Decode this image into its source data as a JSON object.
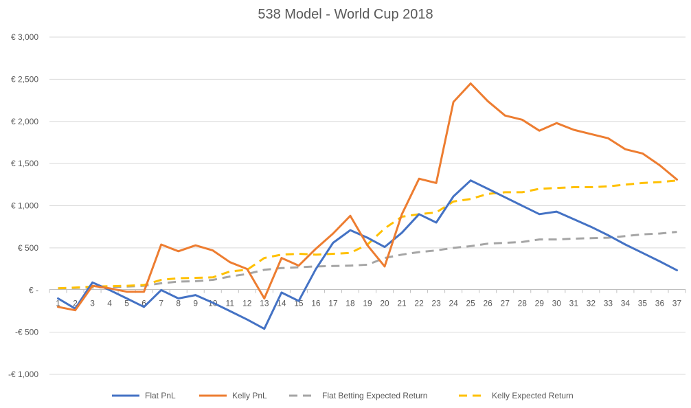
{
  "chart_data": {
    "type": "line",
    "title": "538 Model - World Cup 2018",
    "xlabel": "",
    "ylabel": "",
    "ylim": [
      -1000,
      3000
    ],
    "ytick_values": [
      3000,
      2500,
      2000,
      1500,
      1000,
      500,
      0,
      -500,
      -1000
    ],
    "ytick_labels": [
      "€ 3,000",
      "€ 2,500",
      "€ 2,000",
      "€ 1,500",
      "€ 1,000",
      "€ 500",
      "€ -",
      "-€ 500",
      "-€ 1,000"
    ],
    "grid": true,
    "legend_position": "bottom",
    "x": [
      1,
      2,
      3,
      4,
      5,
      6,
      7,
      8,
      9,
      10,
      11,
      12,
      13,
      14,
      15,
      16,
      17,
      18,
      19,
      20,
      21,
      22,
      23,
      24,
      25,
      26,
      27,
      28,
      29,
      30,
      31,
      32,
      33,
      34,
      35,
      36,
      37
    ],
    "series": [
      {
        "name": "Flat PnL",
        "color": "#4472C4",
        "dash": "solid",
        "values": [
          -100,
          -220,
          90,
          0,
          -100,
          -200,
          0,
          -100,
          -60,
          -150,
          -250,
          -350,
          -460,
          -30,
          -130,
          250,
          560,
          710,
          620,
          510,
          680,
          900,
          800,
          1110,
          1300,
          1200,
          1100,
          1000,
          900,
          930,
          840,
          750,
          650,
          540,
          440,
          340,
          235
        ]
      },
      {
        "name": "Kelly PnL",
        "color": "#ED7D31",
        "dash": "solid",
        "values": [
          -200,
          -240,
          50,
          20,
          -20,
          -20,
          540,
          460,
          530,
          470,
          330,
          250,
          -100,
          380,
          290,
          490,
          670,
          880,
          530,
          280,
          900,
          1320,
          1270,
          2230,
          2450,
          2240,
          2070,
          2020,
          1890,
          1980,
          1900,
          1850,
          1800,
          1670,
          1620,
          1480,
          1310
        ]
      },
      {
        "name": "Flat Betting Expected Return",
        "color": "#A5A5A5",
        "dash": "dashed",
        "values": [
          20,
          25,
          30,
          35,
          40,
          50,
          80,
          100,
          105,
          120,
          160,
          190,
          240,
          260,
          270,
          280,
          285,
          290,
          300,
          380,
          420,
          450,
          470,
          500,
          520,
          550,
          560,
          570,
          600,
          600,
          610,
          615,
          620,
          640,
          660,
          670,
          690
        ]
      },
      {
        "name": "Kelly Expected Return",
        "color": "#FFC000",
        "dash": "dashed",
        "values": [
          20,
          30,
          40,
          45,
          50,
          60,
          120,
          140,
          145,
          150,
          220,
          240,
          380,
          420,
          430,
          420,
          430,
          440,
          540,
          730,
          870,
          900,
          920,
          1050,
          1080,
          1140,
          1160,
          1160,
          1200,
          1210,
          1220,
          1220,
          1230,
          1250,
          1270,
          1280,
          1300
        ]
      }
    ]
  }
}
